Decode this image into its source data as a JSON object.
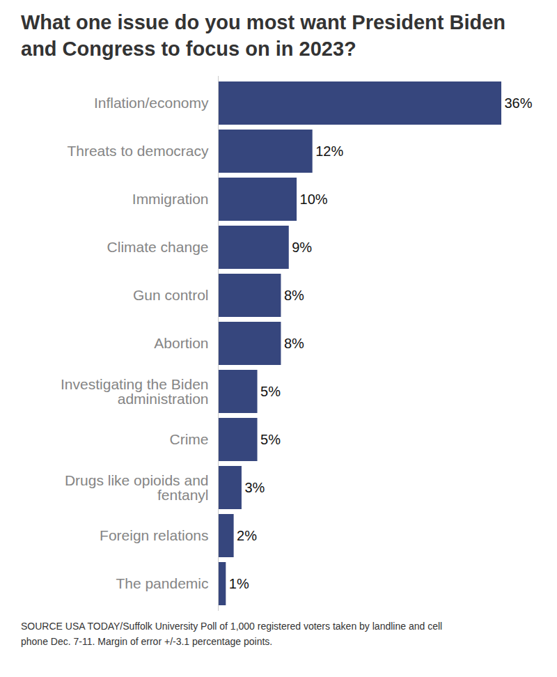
{
  "chart_data": {
    "type": "bar",
    "orientation": "horizontal",
    "title": "What one issue do you most want President Biden and Congress to focus on in 2023?",
    "caption": "SOURCE USA TODAY/Suffolk University Poll of 1,000 registered voters taken by landline and cell phone Dec. 7-11. Margin of error +/-3.1 percentage points.",
    "categories": [
      "Inflation/economy",
      "Threats to democracy",
      "Immigration",
      "Climate change",
      "Gun control",
      "Abortion",
      "Investigating the Biden administration",
      "Crime",
      "Drugs like opioids and fentanyl",
      "Foreign relations",
      "The pandemic"
    ],
    "values": [
      36,
      12,
      10,
      9,
      8,
      8,
      5,
      5,
      3,
      2,
      1
    ],
    "value_labels": [
      "36%",
      "12%",
      "10%",
      "9%",
      "8%",
      "8%",
      "5%",
      "5%",
      "3%",
      "2%",
      "1%"
    ],
    "color": "#36467d",
    "xlim": [
      0,
      36
    ],
    "data_labels": true,
    "tick_labels": "y",
    "grid": false
  }
}
